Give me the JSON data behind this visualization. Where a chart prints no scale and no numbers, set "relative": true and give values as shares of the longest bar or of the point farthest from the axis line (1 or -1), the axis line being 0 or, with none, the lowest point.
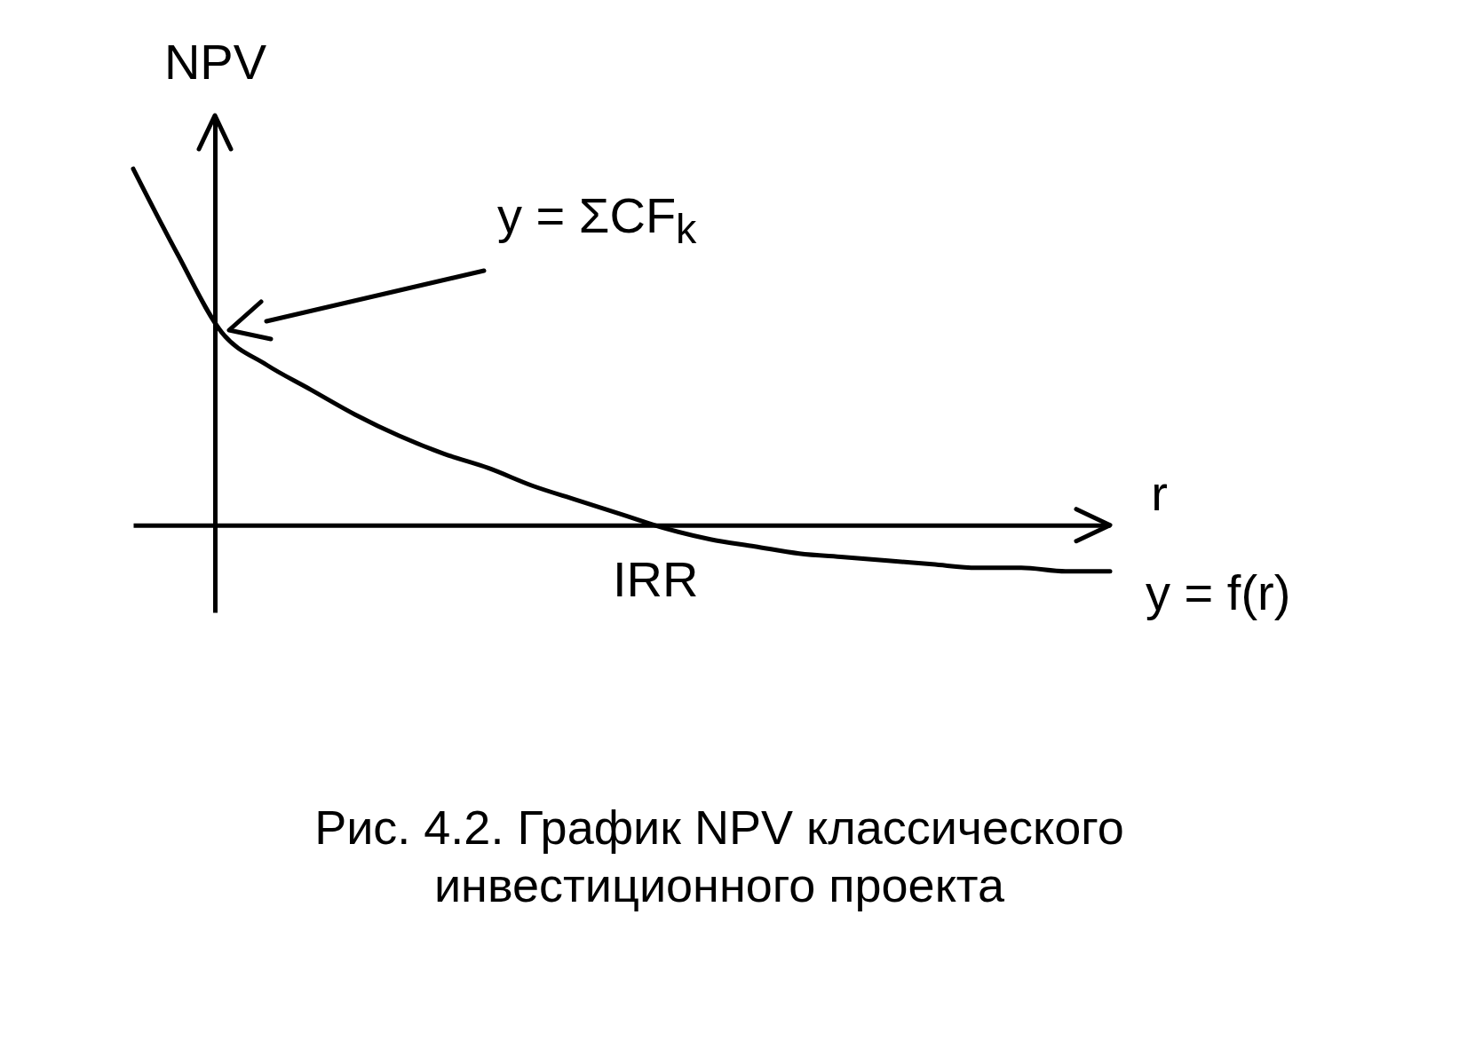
{
  "chart_data": {
    "type": "line",
    "title": "Рис. 4.2. График NPV классического инвестиционного проекта",
    "xlabel": "r",
    "ylabel": "NPV",
    "relative": true,
    "categories": [
      null,
      null,
      null,
      null,
      null,
      null,
      null,
      null,
      null,
      null,
      null,
      null,
      null,
      null,
      null,
      null,
      null,
      null,
      null,
      null,
      null,
      null,
      null
    ],
    "series": [
      {
        "color": "#000000",
        "values": [
          1.0,
          0.76,
          0.54,
          0.45,
          0.38,
          0.31,
          0.25,
          0.2,
          0.16,
          0.11,
          0.07,
          0.03,
          -0.01,
          -0.04,
          -0.06,
          -0.08,
          -0.09,
          -0.1,
          -0.11,
          -0.12,
          -0.12,
          -0.13,
          -0.13
        ]
      }
    ],
    "annotations": [
      "y = ΣCF$_{k}$",
      "IRR",
      "y = f(r)"
    ]
  }
}
